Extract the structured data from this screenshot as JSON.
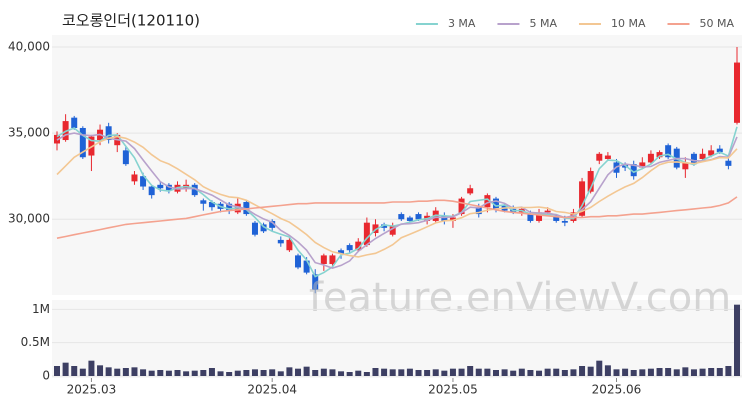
{
  "chart_data": [
    {
      "type": "candlestick",
      "title": "코오롱인더(120110)",
      "categories": [
        null,
        null,
        null,
        null,
        "2025.03",
        null,
        null,
        null,
        null,
        null,
        null,
        null,
        null,
        null,
        null,
        null,
        null,
        null,
        null,
        null,
        null,
        null,
        null,
        null,
        null,
        "2025.04",
        null,
        null,
        null,
        null,
        null,
        null,
        null,
        null,
        null,
        null,
        null,
        null,
        null,
        null,
        null,
        null,
        null,
        null,
        null,
        null,
        "2025.05",
        null,
        null,
        null,
        null,
        null,
        null,
        null,
        null,
        null,
        null,
        null,
        null,
        null,
        null,
        null,
        null,
        null,
        null,
        "2025.06",
        null,
        null,
        null,
        null,
        null,
        null,
        null,
        null,
        null,
        null,
        null,
        null,
        null,
        null
      ],
      "open": [
        34400,
        34600,
        35900,
        35300,
        33700,
        34600,
        35400,
        34300,
        34000,
        32200,
        32500,
        31900,
        32000,
        32000,
        31600,
        31800,
        32000,
        31100,
        31000,
        30900,
        30900,
        30400,
        31000,
        29800,
        29700,
        29900,
        28800,
        28200,
        27900,
        27600,
        26800,
        27400,
        27400,
        28200,
        28500,
        28200,
        28500,
        29200,
        29700,
        29100,
        30300,
        30100,
        30300,
        29900,
        29900,
        30200,
        29900,
        30300,
        31500,
        30700,
        30700,
        31200,
        30800,
        30600,
        30400,
        30300,
        29900,
        30400,
        30200,
        29900,
        29900,
        30200,
        31600,
        33400,
        33500,
        33300,
        33200,
        33200,
        33000,
        33300,
        33600,
        34300,
        34100,
        32900,
        33800,
        33500,
        33700,
        34100,
        33400,
        35600
      ],
      "high": [
        35100,
        36100,
        36000,
        35400,
        34900,
        35500,
        35600,
        35000,
        34200,
        32800,
        32700,
        32000,
        32200,
        32100,
        32200,
        32300,
        32100,
        31200,
        31100,
        31000,
        31000,
        31200,
        31100,
        29900,
        29800,
        30000,
        29000,
        29000,
        28000,
        27800,
        27100,
        28000,
        28000,
        28300,
        28600,
        28900,
        30100,
        30000,
        29800,
        29800,
        30400,
        30200,
        30400,
        30400,
        30700,
        30400,
        30300,
        31300,
        32000,
        30900,
        31500,
        31300,
        30900,
        30800,
        30700,
        30500,
        30600,
        30700,
        30300,
        30200,
        30600,
        32400,
        33000,
        33900,
        33900,
        33500,
        33300,
        33400,
        33600,
        34000,
        34000,
        34400,
        34200,
        33600,
        33900,
        34100,
        34300,
        34300,
        33600,
        40000
      ],
      "low": [
        34000,
        34500,
        35200,
        33500,
        32800,
        34300,
        34400,
        33900,
        33100,
        32000,
        31700,
        31200,
        31600,
        31500,
        31500,
        31600,
        31300,
        30500,
        30500,
        30400,
        30300,
        30300,
        30200,
        29000,
        29200,
        29300,
        28400,
        28100,
        27100,
        26800,
        25700,
        27000,
        27300,
        27700,
        28000,
        28100,
        28400,
        29000,
        29300,
        29000,
        29900,
        29800,
        29900,
        29700,
        29800,
        29700,
        29500,
        30200,
        31400,
        30100,
        30400,
        30400,
        30400,
        30300,
        30200,
        29800,
        29800,
        30300,
        29800,
        29600,
        29800,
        30100,
        31500,
        33200,
        33400,
        32400,
        32800,
        32300,
        32900,
        33200,
        33500,
        33500,
        32900,
        32400,
        33100,
        33400,
        33600,
        33800,
        32900,
        35500
      ],
      "close": [
        34900,
        35700,
        35300,
        33600,
        34800,
        35200,
        34600,
        34900,
        33200,
        32600,
        31900,
        31400,
        31800,
        31700,
        32000,
        32000,
        31400,
        30900,
        30700,
        30600,
        30500,
        30900,
        30300,
        29100,
        29300,
        29500,
        28600,
        28800,
        27200,
        26900,
        25900,
        27900,
        27900,
        28000,
        28200,
        28700,
        29800,
        29700,
        29500,
        29600,
        30000,
        29900,
        30000,
        30200,
        30500,
        29900,
        30100,
        31200,
        31800,
        30300,
        31400,
        30600,
        30500,
        30400,
        30600,
        29900,
        30400,
        30500,
        29900,
        29800,
        30400,
        32200,
        32800,
        33800,
        33700,
        32700,
        33000,
        32500,
        33300,
        33800,
        33900,
        33600,
        33000,
        33300,
        33200,
        33800,
        34000,
        33900,
        33100,
        39100
      ],
      "up_color": "#e8282f",
      "down_color": "#1f62d6",
      "series": [
        {
          "name": "3 MA",
          "color": "#86d3d0",
          "values": [
            34800,
            35100,
            35300,
            34867,
            34567,
            34533,
            34867,
            34900,
            34233,
            33567,
            32567,
            31967,
            31700,
            31633,
            31833,
            31900,
            31800,
            31433,
            31000,
            30733,
            30600,
            30667,
            30567,
            30100,
            29567,
            29300,
            29133,
            28967,
            28200,
            27633,
            26667,
            26900,
            27233,
            27933,
            28033,
            28300,
            28900,
            29400,
            29667,
            29600,
            29700,
            29833,
            29967,
            30033,
            30233,
            30200,
            30167,
            30400,
            31033,
            31100,
            31167,
            30767,
            30833,
            30500,
            30500,
            30300,
            30300,
            30267,
            30267,
            30067,
            30033,
            30800,
            31800,
            32933,
            33433,
            33400,
            33133,
            32733,
            32933,
            33200,
            33667,
            33767,
            33500,
            33300,
            33167,
            33433,
            33667,
            33900,
            33667,
            35367
          ]
        },
        {
          "name": "5 MA",
          "color": "#b8a2cc",
          "values": [
            34600,
            34900,
            35000,
            34900,
            34860,
            34920,
            34700,
            34620,
            34540,
            34100,
            33440,
            32800,
            32180,
            31880,
            31760,
            31780,
            31780,
            31600,
            31400,
            31120,
            30820,
            30720,
            30600,
            30280,
            30020,
            29820,
            29360,
            29060,
            28680,
            28200,
            27480,
            27340,
            27160,
            27320,
            27580,
            28140,
            28520,
            28880,
            29180,
            29460,
            29720,
            29740,
            29800,
            29940,
            30120,
            30100,
            30140,
            30380,
            30700,
            30660,
            30960,
            31060,
            30920,
            30640,
            30700,
            30400,
            30360,
            30360,
            30260,
            30100,
            30200,
            30560,
            31020,
            31800,
            32580,
            33040,
            33200,
            33140,
            33040,
            33060,
            33300,
            33420,
            33520,
            33520,
            33400,
            33380,
            33460,
            33640,
            33600,
            34780
          ]
        },
        {
          "name": "10 MA",
          "color": "#f3c793",
          "values": [
            32600,
            33100,
            33600,
            33900,
            34200,
            34500,
            34700,
            34800,
            34700,
            34480,
            34180,
            33750,
            33400,
            33210,
            32930,
            32610,
            32290,
            31890,
            31640,
            31440,
            31300,
            31250,
            31100,
            30840,
            30570,
            30320,
            30040,
            29830,
            29480,
            29110,
            28650,
            28350,
            28110,
            28000,
            27890,
            27810,
            27930,
            28020,
            28250,
            28520,
            28930,
            29130,
            29340,
            29560,
            29790,
            29910,
            29940,
            30090,
            30320,
            30390,
            30530,
            30600,
            30650,
            30670,
            30680,
            30680,
            30710,
            30640,
            30450,
            30400,
            30300,
            30460,
            30690,
            31030,
            31340,
            31620,
            31880,
            32080,
            32420,
            32820,
            33170,
            33310,
            33330,
            33280,
            33230,
            33340,
            33440,
            33580,
            33560,
            34090
          ]
        },
        {
          "name": "50 MA",
          "color": "#f4a28f",
          "values": [
            28900,
            29000,
            29100,
            29200,
            29300,
            29400,
            29500,
            29600,
            29700,
            29750,
            29800,
            29850,
            29900,
            29950,
            30000,
            30050,
            30150,
            30250,
            30350,
            30450,
            30500,
            30550,
            30600,
            30650,
            30700,
            30750,
            30800,
            30850,
            30900,
            30900,
            30950,
            30950,
            30950,
            30950,
            30950,
            30950,
            30950,
            30950,
            30950,
            31000,
            31000,
            31000,
            31050,
            31050,
            31100,
            31100,
            31050,
            30950,
            30850,
            30750,
            30650,
            30550,
            30450,
            30400,
            30350,
            30300,
            30250,
            30200,
            30150,
            30100,
            30100,
            30100,
            30150,
            30150,
            30200,
            30200,
            30250,
            30300,
            30300,
            30350,
            30400,
            30450,
            30500,
            30550,
            30600,
            30650,
            30700,
            30800,
            30950,
            31300
          ]
        }
      ],
      "ylim": [
        25600,
        40700
      ],
      "yticks": [
        {
          "value": 30000,
          "label": "30,000"
        },
        {
          "value": 35000,
          "label": "35,000"
        },
        {
          "value": 40000,
          "label": "40,000"
        }
      ],
      "grid": true,
      "legend": "top-right",
      "watermark": "feature.enViewV.com"
    },
    {
      "type": "bar",
      "color": "#3d3f63",
      "values": [
        150000,
        200000,
        150000,
        110000,
        230000,
        160000,
        130000,
        110000,
        120000,
        130000,
        100000,
        80000,
        90000,
        80000,
        90000,
        70000,
        80000,
        90000,
        120000,
        70000,
        60000,
        80000,
        90000,
        100000,
        90000,
        100000,
        70000,
        130000,
        110000,
        140000,
        90000,
        110000,
        100000,
        70000,
        60000,
        80000,
        60000,
        120000,
        110000,
        100000,
        100000,
        110000,
        90000,
        90000,
        100000,
        80000,
        110000,
        110000,
        150000,
        110000,
        110000,
        90000,
        100000,
        80000,
        110000,
        90000,
        80000,
        110000,
        110000,
        90000,
        100000,
        150000,
        140000,
        230000,
        160000,
        100000,
        110000,
        90000,
        100000,
        110000,
        120000,
        120000,
        100000,
        130000,
        100000,
        110000,
        120000,
        120000,
        150000,
        1070000
      ],
      "ylim": [
        0,
        1140000
      ],
      "yticks": [
        0,
        {
          "value": 500000,
          "label": "0.5M"
        },
        {
          "value": 1000000,
          "label": "1M"
        }
      ]
    }
  ]
}
